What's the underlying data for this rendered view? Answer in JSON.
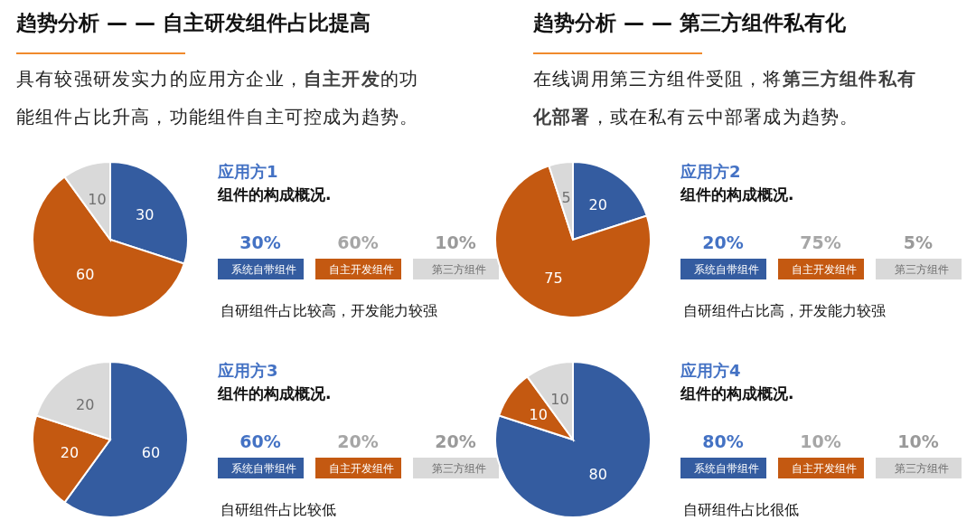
{
  "chart_data": [
    {
      "type": "other",
      "title": "趋势分析 — — 自主研发组件占比提高",
      "annotations": [
        "具有较强研发实力的应用方企业，",
        "自主开发",
        "的功能组件占比升高，功能组件自主可控成为趋势。"
      ]
    },
    {
      "type": "other",
      "title": "趋势分析 — — 第三方组件私有化",
      "annotations": [
        "在线调用第三方组件受阻，将",
        "第三方组件私有化部署",
        "，或在私有云中部署成为趋势。"
      ]
    },
    {
      "type": "pie",
      "title": "应用方1",
      "subtitle": "组件的构成概况.",
      "categories": [
        "系统自带组件",
        "自主开发组件",
        "第三方组件"
      ],
      "values": [
        30,
        60,
        10
      ],
      "legend": "right",
      "colors": [
        "#345ca0",
        "#c45911",
        "#d9d9d9"
      ],
      "data_labels": true,
      "annotations": [
        "30%",
        "60%",
        "10%",
        "自研组件占比较高，开发能力较强"
      ]
    },
    {
      "type": "pie",
      "title": "应用方2",
      "subtitle": "组件的构成概况.",
      "categories": [
        "系统自带组件",
        "自主开发组件",
        "第三方组件"
      ],
      "values": [
        20,
        75,
        5
      ],
      "legend": "right",
      "colors": [
        "#345ca0",
        "#c45911",
        "#d9d9d9"
      ],
      "data_labels": true,
      "annotations": [
        "20%",
        "75%",
        "5%",
        "自研组件占比高，开发能力较强"
      ]
    },
    {
      "type": "pie",
      "title": "应用方3",
      "subtitle": "组件的构成概况.",
      "categories": [
        "系统自带组件",
        "自主开发组件",
        "第三方组件"
      ],
      "values": [
        60,
        20,
        20
      ],
      "legend": "right",
      "colors": [
        "#345ca0",
        "#c45911",
        "#d9d9d9"
      ],
      "data_labels": true,
      "annotations": [
        "60%",
        "20%",
        "20%",
        "自研组件占比较低"
      ]
    },
    {
      "type": "pie",
      "title": "应用方4",
      "subtitle": "组件的构成概况.",
      "categories": [
        "系统自带组件",
        "自主开发组件",
        "第三方组件"
      ],
      "values": [
        80,
        10,
        10
      ],
      "legend": "right",
      "colors": [
        "#345ca0",
        "#c45911",
        "#d9d9d9"
      ],
      "data_labels": true,
      "annotations": [
        "80%",
        "10%",
        "10%",
        "自研组件占比很低"
      ]
    }
  ]
}
